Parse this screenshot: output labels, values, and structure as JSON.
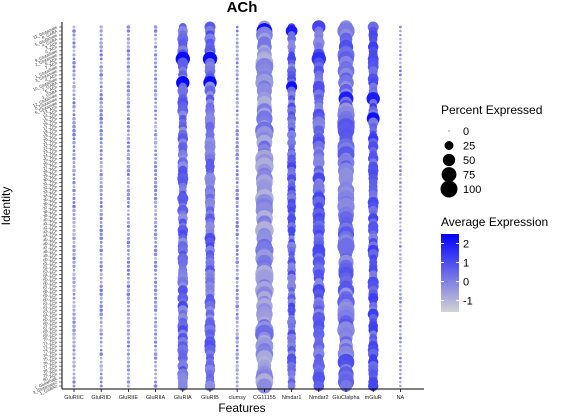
{
  "chart_data": {
    "type": "dot",
    "title": "ACh",
    "xlabel": "Features",
    "ylabel": "Identity",
    "features": [
      "GluRIIC",
      "GluRIID",
      "GluRIIE",
      "GluRIIA",
      "GluRIA",
      "GluRIB",
      "clumsy",
      "CG11155",
      "Nmdar1",
      "Nmdar2",
      "GluClalpha",
      "mGluR",
      "NA"
    ],
    "identities": [
      "11_Glutamate",
      "8_GABA",
      "5_Glutamate",
      "4_GABA",
      "3_ACh",
      "0_ACh",
      "9_Glutamate",
      "2_Glutamate",
      "6_ACh",
      "7_ACh",
      "1_Glutamate",
      "3_Glutamate",
      "4_ACh",
      "10_Glutamate",
      "2_GABA",
      "5_ACh",
      "1_GABA",
      "12_Glutamate",
      "0_Glutamate",
      "6_Glutamate",
      "13_ACh",
      "14_ACh",
      "15_ACh",
      "16_ACh",
      "17_ACh",
      "18_ACh",
      "19_ACh",
      "20_ACh",
      "21_ACh",
      "22_ACh",
      "23_ACh",
      "24_ACh",
      "25_ACh",
      "26_ACh",
      "27_ACh",
      "28_ACh",
      "29_ACh",
      "30_ACh",
      "31_ACh",
      "32_ACh",
      "33_ACh",
      "34_ACh",
      "35_ACh",
      "36_ACh",
      "37_ACh",
      "38_ACh",
      "39_ACh",
      "40_ACh",
      "41_ACh",
      "42_ACh",
      "43_ACh",
      "44_ACh",
      "45_ACh",
      "46_ACh",
      "47_ACh",
      "48_ACh",
      "49_ACh",
      "50_ACh",
      "51_ACh",
      "52_ACh",
      "53_ACh",
      "54_ACh",
      "55_ACh",
      "56_ACh",
      "57_ACh",
      "58_ACh",
      "59_ACh",
      "60_ACh",
      "61_ACh",
      "62_ACh",
      "63_ACh",
      "64_ACh",
      "65_ACh",
      "66_ACh",
      "67_ACh",
      "68_ACh",
      "69_ACh",
      "70_ACh",
      "71_ACh",
      "72_ACh",
      "73_ACh",
      "74_ACh",
      "75_ACh",
      "76_ACh",
      "77_ACh",
      "78_ACh",
      "79_ACh",
      "80_ACh",
      "1_GlutamatE",
      "3_Glutamate2",
      "1_GABA2"
    ],
    "feature_profiles": {
      "GluRIIC": {
        "pct": 2,
        "avg": -0.5
      },
      "GluRIID": {
        "pct": 2,
        "avg": -0.5
      },
      "GluRIIE": {
        "pct": 2,
        "avg": -0.5
      },
      "GluRIIA": {
        "pct": 2,
        "avg": -0.5
      },
      "GluRIA": {
        "pct": 30,
        "avg": 0.4
      },
      "GluRIB": {
        "pct": 30,
        "avg": 0.4
      },
      "clumsy": {
        "pct": 2,
        "avg": -0.5
      },
      "CG11155": {
        "pct": 90,
        "avg": -0.3
      },
      "Nmdar1": {
        "pct": 20,
        "avg": 0.5
      },
      "Nmdar2": {
        "pct": 40,
        "avg": 0.5
      },
      "GluClalpha": {
        "pct": 80,
        "avg": 0.3
      },
      "mGluR": {
        "pct": 30,
        "avg": 0.7
      },
      "NA": {
        "pct": 1,
        "avg": -0.5
      }
    },
    "highlights": [
      {
        "feature": "GluRIA",
        "identity": "6_ACh",
        "pct": 70,
        "avg": 2.3
      },
      {
        "feature": "GluRIB",
        "identity": "6_ACh",
        "pct": 70,
        "avg": 2.3
      },
      {
        "feature": "GluRIA",
        "identity": "2_GABA",
        "pct": 60,
        "avg": 2.4
      },
      {
        "feature": "GluRIB",
        "identity": "2_GABA",
        "pct": 60,
        "avg": 2.4
      },
      {
        "feature": "CG11155",
        "identity": "8_GABA",
        "pct": 85,
        "avg": 2.2
      },
      {
        "feature": "Nmdar1",
        "identity": "8_GABA",
        "pct": 45,
        "avg": 2.0
      },
      {
        "feature": "Nmdar2",
        "identity": "6_ACh",
        "pct": 70,
        "avg": 1.6
      },
      {
        "feature": "Nmdar2",
        "identity": "11_Glutamate",
        "pct": 60,
        "avg": 1.2
      },
      {
        "feature": "mGluR",
        "identity": "0_Glutamate",
        "pct": 60,
        "avg": 2.0
      },
      {
        "feature": "mGluR",
        "identity": "16_ACh",
        "pct": 55,
        "avg": 2.2
      },
      {
        "feature": "GluClalpha",
        "identity": "0_Glutamate",
        "pct": 75,
        "avg": 2.0
      },
      {
        "feature": "Nmdar1",
        "identity": "5_ACh",
        "pct": 40,
        "avg": 2.2
      }
    ],
    "size_legend": {
      "title": "Percent Expressed",
      "values": [
        0,
        25,
        50,
        75,
        100
      ],
      "labels": [
        "0",
        "25",
        "50",
        "75",
        "100"
      ]
    },
    "color_legend": {
      "title": "Average Expression",
      "ticks": [
        2,
        1,
        0,
        -1
      ],
      "labels": [
        "2",
        "1",
        "0",
        "-1"
      ],
      "range": [
        -1.6,
        2.5
      ],
      "low_color": "#d3d3d3",
      "high_color": "#0000ff"
    },
    "grid": false,
    "legend_position": "right"
  }
}
